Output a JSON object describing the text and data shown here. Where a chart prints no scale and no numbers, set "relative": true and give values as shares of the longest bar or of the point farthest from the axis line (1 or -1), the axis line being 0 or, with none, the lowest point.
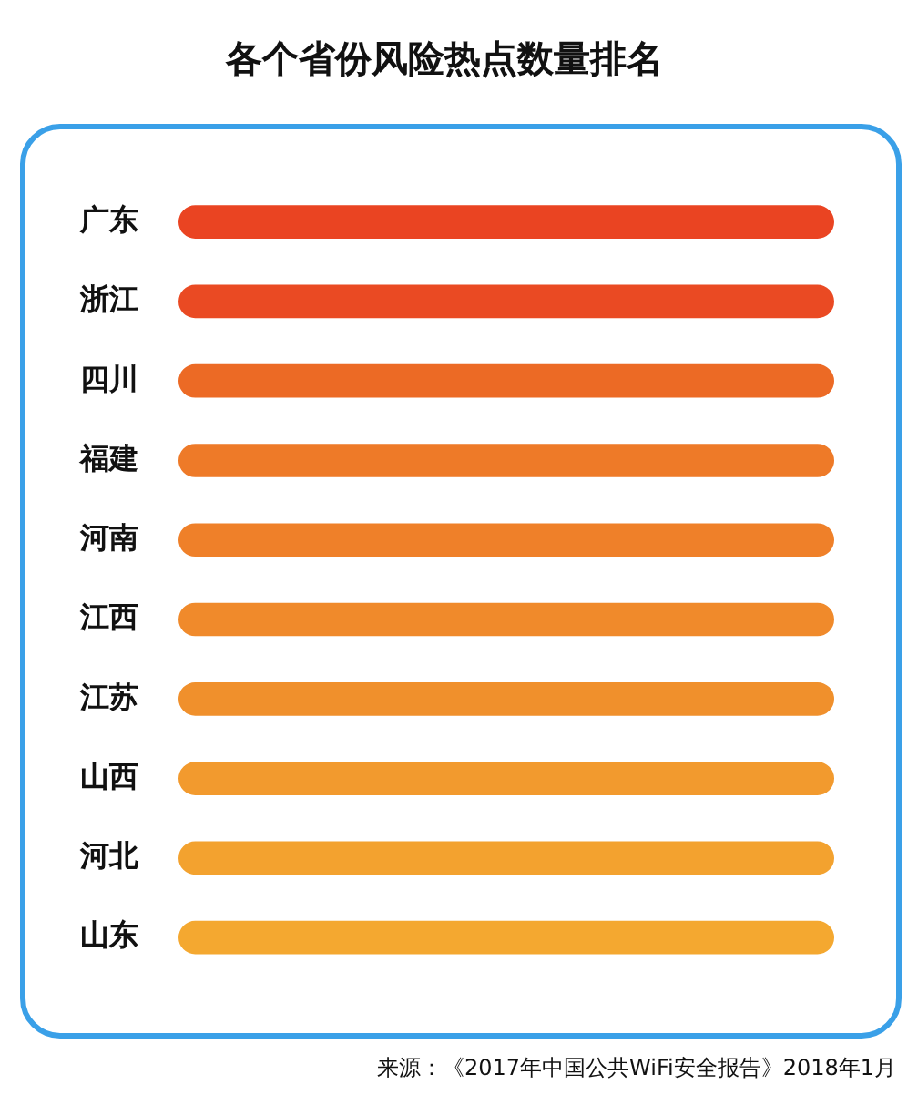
{
  "chart_data": {
    "type": "bar",
    "orientation": "horizontal",
    "relative": true,
    "title": "各个省份风险热点数量排名",
    "categories": [
      "广东",
      "浙江",
      "四川",
      "福建",
      "河南",
      "江西",
      "江苏",
      "山西",
      "河北",
      "山东"
    ],
    "values": [
      1,
      1,
      1,
      1,
      1,
      1,
      1,
      1,
      1,
      1
    ],
    "colors": [
      "#ea4422",
      "#ea4a23",
      "#ec6a25",
      "#ee7a28",
      "#ef8029",
      "#f08a2b",
      "#f0902c",
      "#f29a2e",
      "#f3a22f",
      "#f4a830"
    ],
    "legend": false,
    "annotations": [
      "来源：《2017年中国公共WiFi安全报告》2018年1月"
    ]
  }
}
